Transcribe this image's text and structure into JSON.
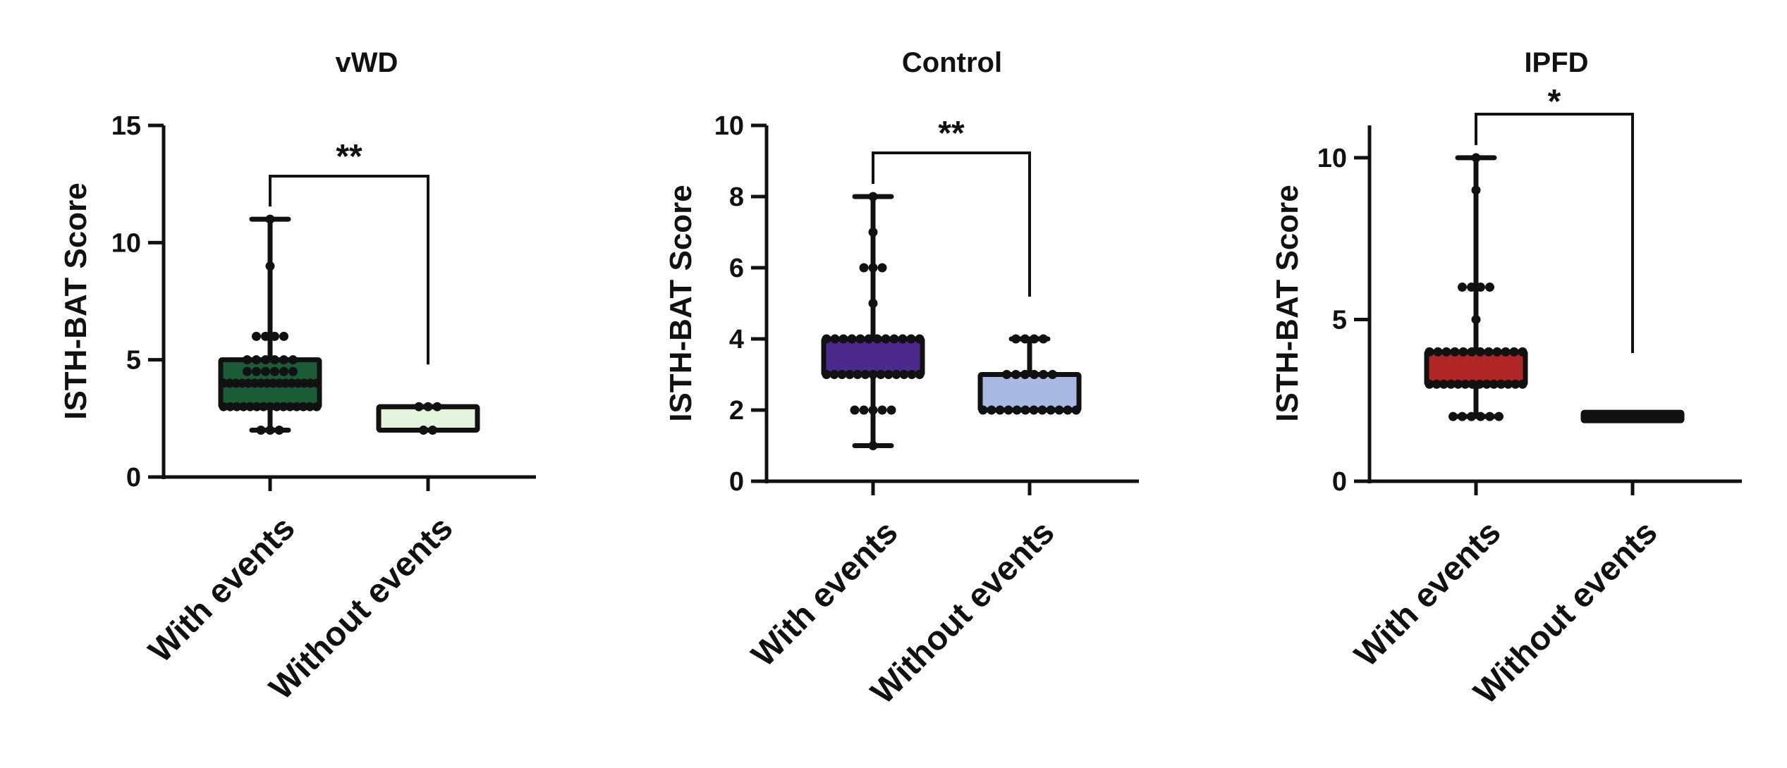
{
  "chart_data": [
    {
      "type": "box",
      "title": "vWD",
      "ylabel": "ISTH-BAT Score",
      "xlabel": "",
      "ylim": [
        0,
        15
      ],
      "yticks": [
        0,
        5,
        10,
        15
      ],
      "categories": [
        "With events",
        "Without events"
      ],
      "significance": "**",
      "boxes": [
        {
          "name": "With events",
          "min": 2,
          "q1": 3,
          "median": 4,
          "q3": 5,
          "max": 11,
          "color": "#1a5c36",
          "points": [
            2,
            2,
            2,
            3,
            3,
            3,
            3,
            3,
            3,
            3,
            3,
            3,
            3,
            3,
            3,
            3,
            3,
            3,
            4,
            4,
            4,
            4,
            4,
            4,
            4,
            4,
            4,
            4,
            4,
            4,
            4,
            4,
            4,
            4,
            4.5,
            4.5,
            4.5,
            4.5,
            4.5,
            4.5,
            5,
            5,
            5,
            5,
            5,
            5,
            6,
            6,
            6,
            6,
            9,
            11
          ]
        },
        {
          "name": "Without events",
          "min": 2,
          "q1": 2,
          "median": 3,
          "q3": 3,
          "max": 3,
          "color": "#e3f4dc",
          "points": [
            2,
            2,
            3,
            3,
            3
          ]
        }
      ]
    },
    {
      "type": "box",
      "title": "Control",
      "ylabel": "ISTH-BAT Score",
      "xlabel": "",
      "ylim": [
        0,
        10
      ],
      "yticks": [
        0,
        2,
        4,
        6,
        8,
        10
      ],
      "categories": [
        "With events",
        "Without events"
      ],
      "significance": "**",
      "boxes": [
        {
          "name": "With events",
          "min": 1,
          "q1": 3,
          "median": 3,
          "q3": 4,
          "max": 8,
          "color": "#4b2a8c",
          "points": [
            1,
            2,
            2,
            2,
            2,
            2,
            3,
            3,
            3,
            3,
            3,
            3,
            3,
            3,
            3,
            3,
            3,
            3,
            3,
            4,
            4,
            4,
            4,
            4,
            4,
            4,
            4,
            4,
            4,
            4,
            4,
            5,
            6,
            6,
            6,
            7,
            8
          ]
        },
        {
          "name": "Without events",
          "min": 2,
          "q1": 2,
          "median": 2,
          "q3": 3,
          "max": 4,
          "color": "#a9b9e2",
          "points": [
            2,
            2,
            2,
            2,
            2,
            2,
            2,
            2,
            2,
            2,
            2,
            2,
            3,
            3,
            3,
            3,
            3,
            3,
            4,
            4,
            4,
            4
          ]
        }
      ]
    },
    {
      "type": "box",
      "title": "IPFD",
      "ylabel": "ISTH-BAT Score",
      "xlabel": "",
      "ylim": [
        0,
        11
      ],
      "yticks": [
        0,
        5,
        10
      ],
      "categories": [
        "With events",
        "Without events"
      ],
      "significance": "*",
      "boxes": [
        {
          "name": "With events",
          "min": 2,
          "q1": 3,
          "median": 3,
          "q3": 4,
          "max": 10,
          "color": "#b02525",
          "points": [
            2,
            2,
            2,
            2,
            2,
            2,
            3,
            3,
            3,
            3,
            3,
            3,
            3,
            3,
            3,
            3,
            3,
            3,
            3,
            3,
            4,
            4,
            4,
            4,
            4,
            4,
            4,
            4,
            4,
            4,
            4,
            4,
            5,
            6,
            6,
            6,
            6,
            9,
            10
          ]
        },
        {
          "name": "Without events",
          "min": 2,
          "q1": 2,
          "median": 2,
          "q3": 2,
          "max": 2,
          "color": "#1a1a1a",
          "points": [
            2,
            2,
            2,
            2,
            2,
            2,
            2
          ]
        }
      ]
    }
  ]
}
